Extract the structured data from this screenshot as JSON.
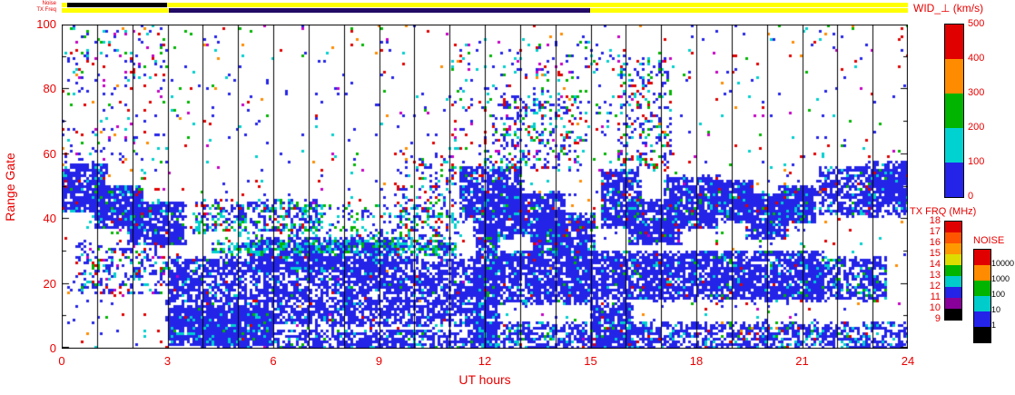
{
  "labels": {
    "wid_title": "WID_⊥ (km/s)",
    "txfrq_title": "TX FRQ (MHz)",
    "noise_title": "NOISE",
    "strip_noise": "Noise",
    "strip_txfreq": "TX Freq",
    "xlabel": "UT hours",
    "ylabel": "Range Gate"
  },
  "axes": {
    "x_ticks": [
      0,
      3,
      6,
      9,
      12,
      15,
      18,
      21,
      24
    ],
    "y_ticks": [
      0,
      20,
      40,
      60,
      80,
      100
    ],
    "x_range": [
      0,
      24
    ],
    "y_range": [
      0,
      100
    ],
    "y_minor_step": 10,
    "hour_line_step": 1
  },
  "strips": {
    "noise": {
      "base": "#ffff00",
      "segments": [
        {
          "t": [
            0.15,
            3.0
          ],
          "color": "#000000"
        }
      ]
    },
    "txfreq": {
      "base": "#ffff00",
      "segments": [
        {
          "t": [
            3.05,
            15.0
          ],
          "color": "#220a66"
        }
      ]
    }
  },
  "wid_colorbar": {
    "ticks": [
      "500",
      "400",
      "300",
      "200",
      "100",
      "0"
    ],
    "segments_top_to_bottom": [
      "#e10000",
      "#ff8c00",
      "#00b400",
      "#00d2d2",
      "#2424e8"
    ]
  },
  "txfrq_colorbar": {
    "ticks": [
      "18",
      "17",
      "16",
      "15",
      "14",
      "13",
      "12",
      "11",
      "10",
      "9"
    ],
    "segments_top_to_bottom": [
      "#e10000",
      "#ff5500",
      "#ff9900",
      "#dddd00",
      "#00b400",
      "#00cccc",
      "#2424e8",
      "#880099",
      "#000000"
    ]
  },
  "noise_colorbar": {
    "ticks": [
      "10000",
      "1000",
      "100",
      "10",
      "1"
    ],
    "segments_top_to_bottom": [
      "#e10000",
      "#ff8c00",
      "#00b400",
      "#00cccc",
      "#2424e8",
      "#000000"
    ]
  },
  "chart_data": {
    "type": "heatmap",
    "title": "WID_⊥ (km/s)",
    "xlabel": "UT hours",
    "ylabel": "Range Gate",
    "xlim": [
      0,
      24
    ],
    "ylim": [
      0,
      100
    ],
    "value_scale": {
      "units": "km/s",
      "range": [
        0,
        500
      ]
    },
    "seed": 7,
    "palette": {
      "b": "#2424e8",
      "c": "#00cfcf",
      "g": "#00b400",
      "r": "#e00000",
      "m": "#c400c4",
      "o": "#ff8c00"
    },
    "regions": [
      {
        "t": [
          0,
          24
        ],
        "g": [
          0,
          100
        ],
        "n": 1100,
        "w": {
          "b": 0.38,
          "c": 0.14,
          "g": 0.1,
          "r": 0.2,
          "m": 0.1,
          "o": 0.08
        }
      },
      {
        "t": [
          11,
          16
        ],
        "g": [
          55,
          95
        ],
        "n": 220,
        "w": {
          "b": 0.45,
          "c": 0.2,
          "g": 0.12,
          "r": 0.15,
          "m": 0.08
        }
      },
      {
        "t": [
          0,
          1.3
        ],
        "g": [
          42,
          57
        ],
        "n": 550,
        "w": {
          "b": 0.88,
          "c": 0.07,
          "g": 0.03,
          "r": 0.02
        }
      },
      {
        "t": [
          0.9,
          2.3
        ],
        "g": [
          37,
          50
        ],
        "n": 650,
        "w": {
          "b": 0.88,
          "c": 0.07,
          "g": 0.03,
          "r": 0.02
        }
      },
      {
        "t": [
          1.9,
          3.5
        ],
        "g": [
          32,
          45
        ],
        "n": 550,
        "w": {
          "b": 0.88,
          "c": 0.07,
          "g": 0.03,
          "r": 0.02
        }
      },
      {
        "t": [
          0.4,
          3.0
        ],
        "g": [
          17,
          33
        ],
        "n": 260,
        "w": {
          "b": 0.6,
          "c": 0.15,
          "g": 0.08,
          "r": 0.12,
          "m": 0.05
        }
      },
      {
        "t": [
          3.0,
          12.0
        ],
        "g": [
          7,
          28
        ],
        "n": 3300,
        "w": {
          "b": 0.93,
          "c": 0.05,
          "g": 0.01,
          "r": 0.01
        }
      },
      {
        "t": [
          3.0,
          6.0
        ],
        "g": [
          1,
          12
        ],
        "n": 1000,
        "w": {
          "b": 0.9,
          "c": 0.07,
          "g": 0.02,
          "r": 0.01
        }
      },
      {
        "t": [
          4.0,
          11.8
        ],
        "g": [
          0,
          6
        ],
        "n": 800,
        "w": {
          "b": 0.9,
          "c": 0.08,
          "g": 0.02
        }
      },
      {
        "t": [
          5.3,
          9.6
        ],
        "g": [
          24,
          34
        ],
        "n": 900,
        "w": {
          "b": 0.9,
          "c": 0.07,
          "g": 0.02,
          "r": 0.01
        }
      },
      {
        "t": [
          4.3,
          11.2
        ],
        "g": [
          29,
          33
        ],
        "n": 420,
        "w": {
          "c": 0.45,
          "g": 0.2,
          "b": 0.35
        }
      },
      {
        "t": [
          3.7,
          7.4
        ],
        "g": [
          36,
          46
        ],
        "n": 330,
        "w": {
          "b": 0.55,
          "c": 0.25,
          "g": 0.12,
          "r": 0.08
        }
      },
      {
        "t": [
          5.0,
          11.0
        ],
        "g": [
          33,
          45
        ],
        "n": 260,
        "w": {
          "b": 0.5,
          "c": 0.3,
          "g": 0.2
        }
      },
      {
        "t": [
          9.5,
          11.5
        ],
        "g": [
          30,
          60
        ],
        "n": 200,
        "w": {
          "b": 0.5,
          "c": 0.22,
          "g": 0.12,
          "r": 0.16
        }
      },
      {
        "t": [
          11.7,
          12.4
        ],
        "g": [
          0,
          40
        ],
        "n": 700,
        "w": {
          "b": 0.88,
          "c": 0.08,
          "g": 0.02,
          "r": 0.02
        }
      },
      {
        "t": [
          11.3,
          13.1
        ],
        "g": [
          40,
          56
        ],
        "n": 750,
        "w": {
          "b": 0.88,
          "c": 0.07,
          "g": 0.03,
          "r": 0.02
        }
      },
      {
        "t": [
          12.0,
          14.3
        ],
        "g": [
          34,
          48
        ],
        "n": 850,
        "w": {
          "b": 0.88,
          "c": 0.07,
          "g": 0.03,
          "r": 0.02
        }
      },
      {
        "t": [
          13.4,
          15.1
        ],
        "g": [
          29,
          42
        ],
        "n": 550,
        "w": {
          "b": 0.88,
          "c": 0.07,
          "g": 0.03,
          "r": 0.02
        }
      },
      {
        "t": [
          12.2,
          15.0
        ],
        "g": [
          14,
          30
        ],
        "n": 1150,
        "w": {
          "b": 0.9,
          "c": 0.07,
          "g": 0.015,
          "r": 0.015
        }
      },
      {
        "t": [
          11.8,
          24
        ],
        "g": [
          0,
          8
        ],
        "n": 1500,
        "w": {
          "b": 0.85,
          "c": 0.1,
          "g": 0.02,
          "r": 0.03
        }
      },
      {
        "t": [
          15.0,
          16.2
        ],
        "g": [
          0,
          14
        ],
        "n": 450,
        "w": {
          "b": 0.88,
          "c": 0.08,
          "g": 0.02,
          "r": 0.02
        }
      },
      {
        "t": [
          15.0,
          21.6
        ],
        "g": [
          15,
          30
        ],
        "n": 2500,
        "w": {
          "b": 0.92,
          "c": 0.05,
          "g": 0.015,
          "r": 0.015
        }
      },
      {
        "t": [
          15.3,
          16.4
        ],
        "g": [
          37,
          55
        ],
        "n": 520,
        "w": {
          "b": 0.88,
          "c": 0.07,
          "g": 0.03,
          "r": 0.02
        }
      },
      {
        "t": [
          16.1,
          17.6
        ],
        "g": [
          32,
          46
        ],
        "n": 600,
        "w": {
          "b": 0.88,
          "c": 0.07,
          "g": 0.03,
          "r": 0.02
        }
      },
      {
        "t": [
          17.1,
          18.6
        ],
        "g": [
          37,
          53
        ],
        "n": 620,
        "w": {
          "b": 0.88,
          "c": 0.07,
          "g": 0.03,
          "r": 0.02
        }
      },
      {
        "t": [
          18.4,
          19.6
        ],
        "g": [
          39,
          52
        ],
        "n": 520,
        "w": {
          "b": 0.88,
          "c": 0.07,
          "g": 0.03,
          "r": 0.02
        }
      },
      {
        "t": [
          19.4,
          20.6
        ],
        "g": [
          34,
          48
        ],
        "n": 470,
        "w": {
          "b": 0.88,
          "c": 0.07,
          "g": 0.03,
          "r": 0.02
        }
      },
      {
        "t": [
          20.3,
          21.4
        ],
        "g": [
          39,
          50
        ],
        "n": 360,
        "w": {
          "b": 0.88,
          "c": 0.07,
          "g": 0.03,
          "r": 0.02
        }
      },
      {
        "t": [
          21.5,
          24
        ],
        "g": [
          41,
          56
        ],
        "n": 650,
        "w": {
          "b": 0.88,
          "c": 0.07,
          "g": 0.03,
          "r": 0.02
        }
      },
      {
        "t": [
          22.9,
          24
        ],
        "g": [
          45,
          58
        ],
        "n": 300,
        "w": {
          "b": 0.88,
          "c": 0.07,
          "g": 0.03,
          "r": 0.02
        }
      },
      {
        "t": [
          21.0,
          23.4
        ],
        "g": [
          15,
          28
        ],
        "n": 520,
        "w": {
          "b": 0.85,
          "c": 0.1,
          "g": 0.05
        }
      },
      {
        "t": [
          12.0,
          14.7
        ],
        "g": [
          55,
          78
        ],
        "n": 240,
        "w": {
          "b": 0.5,
          "c": 0.2,
          "g": 0.1,
          "r": 0.15,
          "m": 0.05
        }
      },
      {
        "t": [
          15.8,
          17.3
        ],
        "g": [
          55,
          90
        ],
        "n": 240,
        "w": {
          "b": 0.5,
          "c": 0.2,
          "g": 0.1,
          "r": 0.15,
          "m": 0.05
        }
      },
      {
        "t": [
          0,
          3
        ],
        "g": [
          55,
          100
        ],
        "n": 150,
        "w": {
          "b": 0.4,
          "c": 0.15,
          "g": 0.1,
          "r": 0.2,
          "m": 0.1,
          "o": 0.05
        }
      }
    ]
  }
}
